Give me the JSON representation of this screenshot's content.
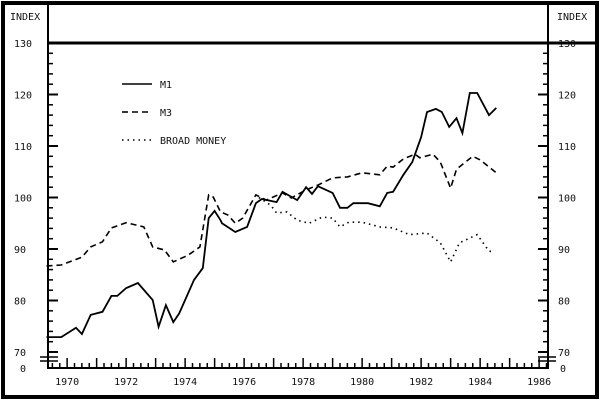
{
  "chart_data": {
    "type": "line",
    "title": "",
    "ylabel_left": "INDEX",
    "ylabel_right": "INDEX",
    "xlabel": "",
    "xlim": [
      1969.25,
      1986.4
    ],
    "ylim": [
      70,
      130
    ],
    "y_axis_break_label": "0",
    "x_ticks": [
      "1970",
      "1972",
      "1974",
      "1976",
      "1978",
      "1980",
      "1982",
      "1984",
      "1986"
    ],
    "y_ticks": [
      "70",
      "80",
      "90",
      "100",
      "110",
      "120",
      "130"
    ],
    "grid": false,
    "legend_placement": "top-left",
    "series": [
      {
        "name": "M1",
        "style": "solid",
        "points": [
          [
            1969.3,
            72.9
          ],
          [
            1969.8,
            72.9
          ],
          [
            1970.3,
            74.7
          ],
          [
            1970.5,
            73.5
          ],
          [
            1970.8,
            77.2
          ],
          [
            1971.2,
            77.8
          ],
          [
            1971.5,
            80.9
          ],
          [
            1971.7,
            80.9
          ],
          [
            1972.0,
            82.4
          ],
          [
            1972.4,
            83.4
          ],
          [
            1972.9,
            80.1
          ],
          [
            1973.1,
            74.9
          ],
          [
            1973.35,
            79.1
          ],
          [
            1973.6,
            75.8
          ],
          [
            1973.8,
            77.5
          ],
          [
            1974.3,
            84.0
          ],
          [
            1974.6,
            86.3
          ],
          [
            1974.8,
            96.0
          ],
          [
            1975.0,
            97.4
          ],
          [
            1975.2,
            95.6
          ],
          [
            1975.25,
            95.0
          ],
          [
            1975.7,
            93.3
          ],
          [
            1976.1,
            94.3
          ],
          [
            1976.4,
            98.9
          ],
          [
            1976.6,
            99.7
          ],
          [
            1977.1,
            99.1
          ],
          [
            1977.3,
            101.1
          ],
          [
            1977.8,
            99.5
          ],
          [
            1978.1,
            102.0
          ],
          [
            1978.3,
            100.7
          ],
          [
            1978.5,
            102.2
          ],
          [
            1979.0,
            100.9
          ],
          [
            1979.25,
            98.0
          ],
          [
            1979.5,
            98.0
          ],
          [
            1979.7,
            98.9
          ],
          [
            1980.2,
            98.9
          ],
          [
            1980.6,
            98.3
          ],
          [
            1980.85,
            100.9
          ],
          [
            1981.05,
            101.1
          ],
          [
            1981.4,
            104.4
          ],
          [
            1981.7,
            106.9
          ],
          [
            1982.0,
            111.7
          ],
          [
            1982.2,
            116.6
          ],
          [
            1982.5,
            117.2
          ],
          [
            1982.7,
            116.6
          ],
          [
            1982.95,
            113.7
          ],
          [
            1983.2,
            115.4
          ],
          [
            1983.4,
            112.5
          ],
          [
            1983.65,
            120.3
          ],
          [
            1983.9,
            120.3
          ],
          [
            1984.3,
            116.0
          ],
          [
            1984.55,
            117.4
          ]
        ]
      },
      {
        "name": "M3",
        "style": "dashed",
        "points": [
          [
            1969.3,
            86.7
          ],
          [
            1969.8,
            86.9
          ],
          [
            1970.5,
            88.4
          ],
          [
            1970.8,
            90.4
          ],
          [
            1971.2,
            91.4
          ],
          [
            1971.5,
            94.1
          ],
          [
            1972.0,
            95.1
          ],
          [
            1972.6,
            94.3
          ],
          [
            1972.9,
            90.4
          ],
          [
            1973.3,
            89.8
          ],
          [
            1973.6,
            87.5
          ],
          [
            1974.1,
            88.8
          ],
          [
            1974.5,
            90.4
          ],
          [
            1974.8,
            100.5
          ],
          [
            1974.95,
            100.1
          ],
          [
            1975.2,
            97.2
          ],
          [
            1975.45,
            96.6
          ],
          [
            1975.7,
            95.0
          ],
          [
            1975.95,
            96.0
          ],
          [
            1976.4,
            100.5
          ],
          [
            1976.75,
            99.5
          ],
          [
            1977.3,
            100.9
          ],
          [
            1977.6,
            99.9
          ],
          [
            1978.1,
            101.5
          ],
          [
            1978.5,
            102.4
          ],
          [
            1979.0,
            103.8
          ],
          [
            1979.5,
            104.0
          ],
          [
            1980.0,
            104.8
          ],
          [
            1980.6,
            104.4
          ],
          [
            1980.85,
            106.1
          ],
          [
            1981.05,
            105.9
          ],
          [
            1981.4,
            107.5
          ],
          [
            1981.8,
            108.4
          ],
          [
            1981.95,
            107.7
          ],
          [
            1982.4,
            108.4
          ],
          [
            1982.65,
            106.9
          ],
          [
            1983.0,
            101.8
          ],
          [
            1983.2,
            105.5
          ],
          [
            1983.75,
            108.0
          ],
          [
            1984.0,
            107.3
          ],
          [
            1984.55,
            104.8
          ]
        ]
      },
      {
        "name": "BROAD MONEY",
        "style": "dotted",
        "points": [
          [
            1976.5,
            100.0
          ],
          [
            1976.9,
            98.5
          ],
          [
            1977.1,
            97.0
          ],
          [
            1977.45,
            97.2
          ],
          [
            1977.8,
            95.6
          ],
          [
            1978.2,
            95.0
          ],
          [
            1978.65,
            96.2
          ],
          [
            1979.0,
            96.0
          ],
          [
            1979.25,
            94.3
          ],
          [
            1979.55,
            95.2
          ],
          [
            1980.0,
            95.2
          ],
          [
            1980.6,
            94.3
          ],
          [
            1981.05,
            94.1
          ],
          [
            1981.6,
            92.8
          ],
          [
            1982.2,
            93.1
          ],
          [
            1982.65,
            91.2
          ],
          [
            1983.0,
            87.5
          ],
          [
            1983.3,
            91.2
          ],
          [
            1983.9,
            92.8
          ],
          [
            1984.3,
            89.6
          ],
          [
            1984.5,
            89.4
          ]
        ]
      }
    ]
  }
}
